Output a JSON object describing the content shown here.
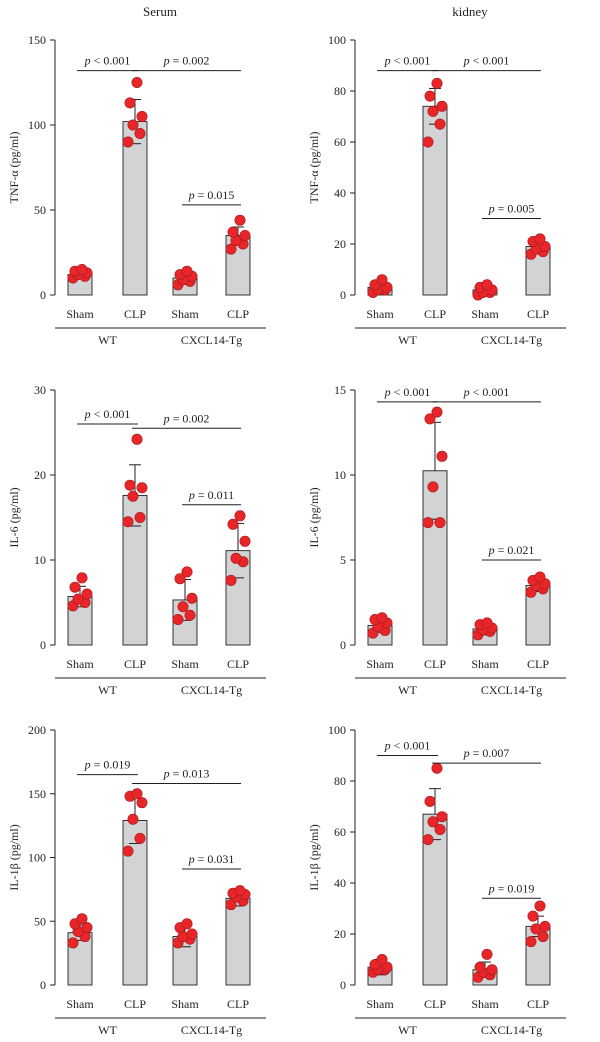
{
  "columns": {
    "left_title": "Serum",
    "right_title": "kidney"
  },
  "sig_prefix": "p",
  "chart_data": [
    {
      "type": "bar",
      "title": "Serum",
      "ylabel": "TNF-α (pg/ml)",
      "ylim": [
        0,
        150
      ],
      "yticks": [
        0,
        50,
        100,
        150
      ],
      "categories": [
        "Sham",
        "CLP",
        "Sham",
        "CLP"
      ],
      "groups": [
        "WT",
        "CXCL14-Tg"
      ],
      "values": [
        12,
        102,
        10,
        35
      ],
      "errors": [
        1.5,
        13,
        3,
        5
      ],
      "points": [
        [
          10,
          11,
          12,
          13,
          14,
          15
        ],
        [
          90,
          95,
          100,
          105,
          113,
          125
        ],
        [
          6,
          8,
          9,
          11,
          12,
          14
        ],
        [
          27,
          30,
          32,
          35,
          37,
          44
        ]
      ],
      "comparisons": [
        {
          "from": 0,
          "to": 1,
          "y": 132,
          "label": "< 0.001"
        },
        {
          "from": 1,
          "to": 3,
          "y": 132,
          "label": "= 0.002"
        },
        {
          "from": 2,
          "to": 3,
          "y": 53,
          "label": "= 0.015"
        }
      ]
    },
    {
      "type": "bar",
      "title": "kidney",
      "ylabel": "TNF-α (pg/ml)",
      "ylim": [
        0,
        100
      ],
      "yticks": [
        0,
        20,
        40,
        60,
        80,
        100
      ],
      "categories": [
        "Sham",
        "CLP",
        "Sham",
        "CLP"
      ],
      "groups": [
        "WT",
        "CXCL14-Tg"
      ],
      "values": [
        3,
        74,
        2,
        19
      ],
      "errors": [
        2,
        7,
        1.5,
        2
      ],
      "points": [
        [
          1,
          2,
          2,
          3,
          4,
          6
        ],
        [
          60,
          67,
          72,
          74,
          78,
          83
        ],
        [
          0,
          1,
          1,
          2,
          3,
          4
        ],
        [
          16,
          17,
          18,
          19,
          21,
          22
        ]
      ],
      "comparisons": [
        {
          "from": 0,
          "to": 1,
          "y": 88,
          "label": "< 0.001"
        },
        {
          "from": 1,
          "to": 3,
          "y": 88,
          "label": "< 0.001"
        },
        {
          "from": 2,
          "to": 3,
          "y": 30,
          "label": "= 0.005"
        }
      ]
    },
    {
      "type": "bar",
      "title": "",
      "ylabel": "IL-6 (pg/ml)",
      "ylim": [
        0,
        30
      ],
      "yticks": [
        0,
        10,
        20,
        30
      ],
      "categories": [
        "Sham",
        "CLP",
        "Sham",
        "CLP"
      ],
      "groups": [
        "WT",
        "CXCL14-Tg"
      ],
      "values": [
        5.7,
        17.6,
        5.3,
        11.1
      ],
      "errors": [
        1.2,
        3.6,
        2.4,
        3.2
      ],
      "points": [
        [
          4.6,
          5.0,
          5.4,
          6.0,
          6.8,
          7.9
        ],
        [
          14.5,
          15.0,
          17.5,
          18.5,
          18.8,
          24.2
        ],
        [
          3.0,
          3.5,
          4.5,
          5.5,
          7.8,
          8.6
        ],
        [
          7.6,
          9.8,
          10.2,
          12.2,
          14.2,
          15.2
        ]
      ],
      "comparisons": [
        {
          "from": 0,
          "to": 1,
          "y": 26,
          "label": "< 0.001"
        },
        {
          "from": 1,
          "to": 3,
          "y": 25.5,
          "label": "= 0.002"
        },
        {
          "from": 2,
          "to": 3,
          "y": 16.5,
          "label": "= 0.011"
        }
      ]
    },
    {
      "type": "bar",
      "title": "",
      "ylabel": "IL-6 (pg/ml)",
      "ylim": [
        0,
        15
      ],
      "yticks": [
        0,
        5,
        10,
        15
      ],
      "categories": [
        "Sham",
        "CLP",
        "Sham",
        "CLP"
      ],
      "groups": [
        "WT",
        "CXCL14-Tg"
      ],
      "values": [
        1.15,
        10.25,
        0.95,
        3.5
      ],
      "errors": [
        0.4,
        2.85,
        0.35,
        0.35
      ],
      "points": [
        [
          0.7,
          0.85,
          1.1,
          1.3,
          1.5,
          1.6
        ],
        [
          7.2,
          7.2,
          9.3,
          11.1,
          13.3,
          13.7
        ],
        [
          0.6,
          0.8,
          0.9,
          1.0,
          1.2,
          1.3
        ],
        [
          3.1,
          3.3,
          3.5,
          3.6,
          3.8,
          4.0
        ]
      ],
      "comparisons": [
        {
          "from": 0,
          "to": 1,
          "y": 14.3,
          "label": "< 0.001"
        },
        {
          "from": 1,
          "to": 3,
          "y": 14.3,
          "label": "< 0.001"
        },
        {
          "from": 2,
          "to": 3,
          "y": 5.0,
          "label": "= 0.021"
        }
      ]
    },
    {
      "type": "bar",
      "title": "",
      "ylabel": "IL-1β (pg/ml)",
      "ylim": [
        0,
        200
      ],
      "yticks": [
        0,
        50,
        100,
        150,
        200
      ],
      "categories": [
        "Sham",
        "CLP",
        "Sham",
        "CLP"
      ],
      "groups": [
        "WT",
        "CXCL14-Tg"
      ],
      "values": [
        41,
        129,
        38,
        68
      ],
      "errors": [
        6,
        18,
        8,
        6
      ],
      "points": [
        [
          33,
          38,
          42,
          45,
          48,
          52
        ],
        [
          105,
          115,
          130,
          143,
          148,
          150
        ],
        [
          33,
          36,
          38,
          40,
          45,
          48
        ],
        [
          63,
          66,
          69,
          71,
          72,
          74
        ]
      ],
      "comparisons": [
        {
          "from": 0,
          "to": 1,
          "y": 165,
          "label": "= 0.019"
        },
        {
          "from": 1,
          "to": 3,
          "y": 158,
          "label": "= 0.013"
        },
        {
          "from": 2,
          "to": 3,
          "y": 91,
          "label": "= 0.031"
        }
      ]
    },
    {
      "type": "bar",
      "title": "",
      "ylabel": "IL-1β (pg/ml)",
      "ylim": [
        0,
        100
      ],
      "yticks": [
        0,
        20,
        40,
        60,
        80,
        100
      ],
      "categories": [
        "Sham",
        "CLP",
        "Sham",
        "CLP"
      ],
      "groups": [
        "WT",
        "CXCL14-Tg"
      ],
      "values": [
        7,
        67,
        6,
        23
      ],
      "errors": [
        3,
        10,
        3,
        4
      ],
      "points": [
        [
          5,
          6,
          6,
          7,
          8,
          10
        ],
        [
          57,
          61,
          64,
          66,
          72,
          85
        ],
        [
          3,
          4,
          5,
          6,
          7,
          12
        ],
        [
          17,
          19,
          22,
          23,
          27,
          31
        ]
      ],
      "comparisons": [
        {
          "from": 0,
          "to": 1,
          "y": 90,
          "label": "< 0.001"
        },
        {
          "from": 1,
          "to": 3,
          "y": 87,
          "label": "= 0.007"
        },
        {
          "from": 2,
          "to": 3,
          "y": 34,
          "label": "= 0.019"
        }
      ]
    }
  ]
}
